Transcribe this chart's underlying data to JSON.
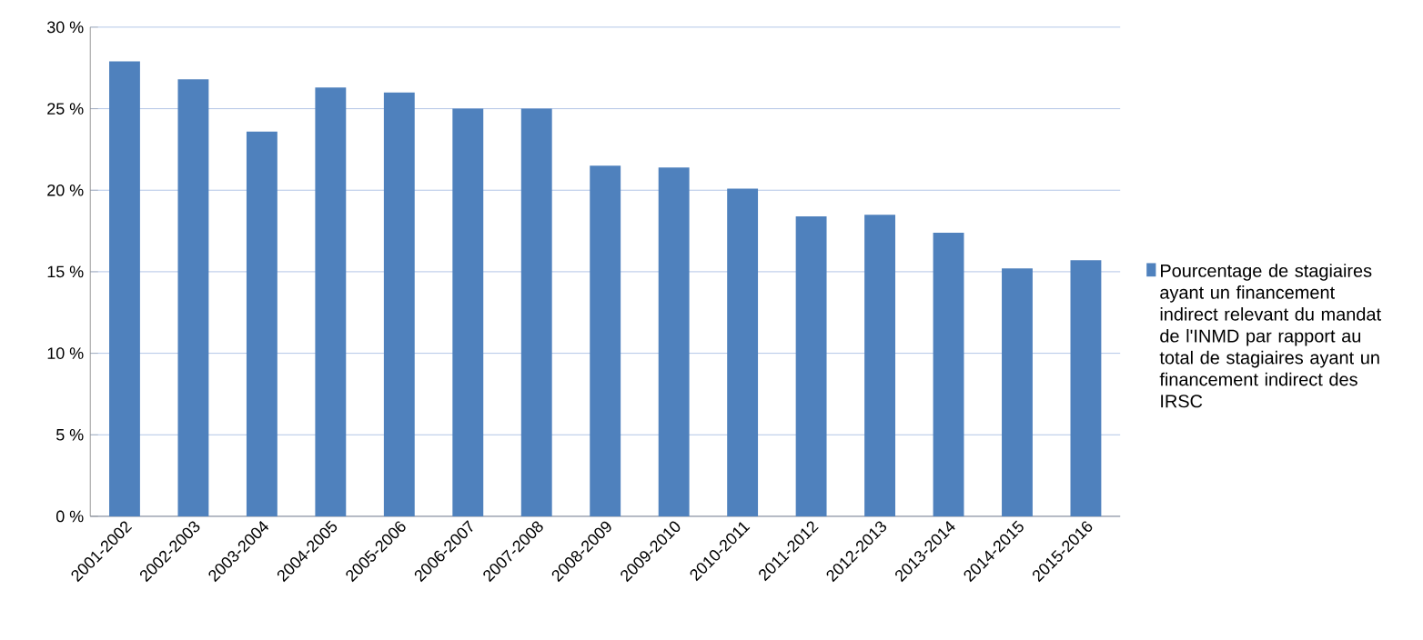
{
  "chart_data": {
    "type": "bar",
    "categories": [
      "2001-2002",
      "2002-2003",
      "2003-2004",
      "2004-2005",
      "2005-2006",
      "2006-2007",
      "2007-2008",
      "2008-2009",
      "2009-2010",
      "2010-2011",
      "2011-2012",
      "2012-2013",
      "2013-2014",
      "2014-2015",
      "2015-2016"
    ],
    "series": [
      {
        "name": "Pourcentage de stagiaires ayant un financement indirect relevant du mandat de l'INMD  par rapport au total de stagiaires ayant un financement indirect des IRSC",
        "color": "#4f81bd",
        "values": [
          27.9,
          26.8,
          23.6,
          26.3,
          26.0,
          25.0,
          25.0,
          21.5,
          21.4,
          20.1,
          18.4,
          18.5,
          17.4,
          15.2,
          15.7
        ]
      }
    ],
    "ylim": [
      0,
      30
    ],
    "yticks": [
      {
        "value": 0,
        "label": "0 %"
      },
      {
        "value": 5,
        "label": "5 %"
      },
      {
        "value": 10,
        "label": "10 %"
      },
      {
        "value": 15,
        "label": "15 %"
      },
      {
        "value": 20,
        "label": "20 %"
      },
      {
        "value": 25,
        "label": "25 %"
      },
      {
        "value": 30,
        "label": "30 %"
      }
    ],
    "grid": "y",
    "legend": "right"
  }
}
